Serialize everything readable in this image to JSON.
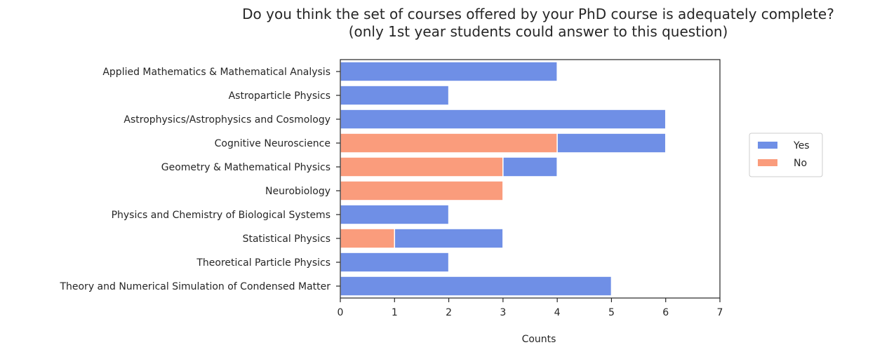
{
  "chart_data": {
    "type": "bar",
    "orientation": "horizontal",
    "stacked": true,
    "title": "Do you think the set of courses offered by your PhD course is adequately complete?",
    "subtitle": "(only 1st year students could answer to this question)",
    "xlabel": "Counts",
    "ylabel": "",
    "xlim": [
      0,
      7
    ],
    "xticks": [
      "0",
      "1",
      "2",
      "3",
      "4",
      "5",
      "6",
      "7"
    ],
    "grid": false,
    "legend_position": "right",
    "categories": [
      "Applied Mathematics & Mathematical Analysis",
      "Astroparticle Physics",
      "Astrophysics/Astrophysics and Cosmology",
      "Cognitive Neuroscience",
      "Geometry & Mathematical Physics",
      "Neurobiology",
      "Physics and Chemistry of Biological Systems",
      "Statistical Physics",
      "Theoretical Particle Physics",
      "Theory and Numerical Simulation of Condensed Matter"
    ],
    "series": [
      {
        "name": "No",
        "color": "#fa9c7c",
        "values": [
          0,
          0,
          0,
          4,
          3,
          3,
          0,
          1,
          0,
          0
        ]
      },
      {
        "name": "Yes",
        "color": "#6f8fe6",
        "values": [
          4,
          2,
          6,
          2,
          1,
          0,
          2,
          2,
          2,
          5
        ]
      }
    ],
    "legend": [
      {
        "label": "Yes",
        "color": "#6f8fe6"
      },
      {
        "label": "No",
        "color": "#fa9c7c"
      }
    ]
  }
}
